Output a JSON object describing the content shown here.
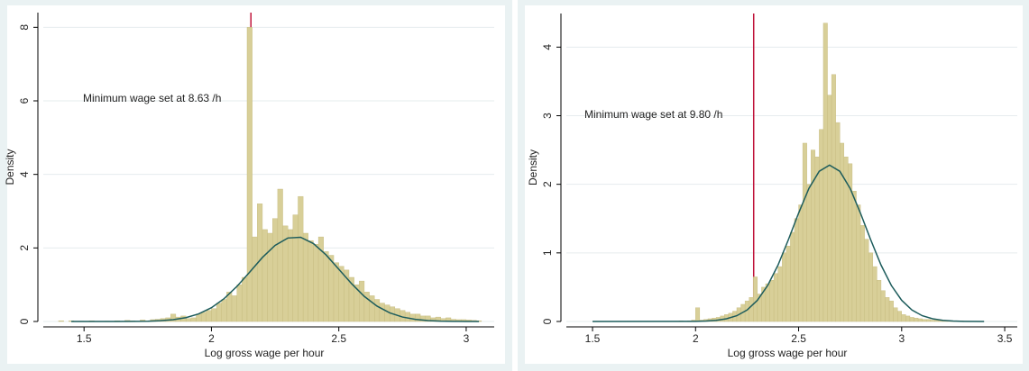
{
  "chart_data": [
    {
      "type": "histogram",
      "bins": [
        1.4,
        1.42,
        1.44,
        1.46,
        1.48,
        1.5,
        1.52,
        1.54,
        1.56,
        1.58,
        1.6,
        1.62,
        1.64,
        1.66,
        1.68,
        1.7,
        1.72,
        1.74,
        1.76,
        1.78,
        1.8,
        1.82,
        1.84,
        1.86,
        1.88,
        1.9,
        1.92,
        1.94,
        1.96,
        1.98,
        2,
        2.02,
        2.04,
        2.06,
        2.08,
        2.1,
        2.12,
        2.14,
        2.16,
        2.18,
        2.2,
        2.22,
        2.24,
        2.26,
        2.28,
        2.3,
        2.32,
        2.34,
        2.36,
        2.38,
        2.4,
        2.42,
        2.44,
        2.46,
        2.48,
        2.5,
        2.52,
        2.54,
        2.56,
        2.58,
        2.6,
        2.62,
        2.64,
        2.66,
        2.68,
        2.7,
        2.72,
        2.74,
        2.76,
        2.78,
        2.8,
        2.82,
        2.84,
        2.86,
        2.88,
        2.9,
        2.92,
        2.94,
        2.96,
        2.98,
        3,
        3.02,
        3.04,
        3.06
      ],
      "values": [
        0.02,
        0,
        0.02,
        0,
        0.01,
        0,
        0.02,
        0,
        0,
        0.01,
        0,
        0.02,
        0,
        0.03,
        0.02,
        0,
        0.04,
        0.02,
        0.05,
        0.06,
        0.08,
        0.1,
        0.2,
        0.12,
        0.15,
        0.08,
        0.1,
        0.2,
        0.25,
        0.3,
        0.35,
        0.5,
        0.6,
        0.8,
        0.7,
        1.0,
        1.2,
        8.0,
        2.3,
        3.2,
        2.5,
        2.4,
        2.8,
        3.6,
        2.6,
        2.5,
        2.9,
        3.4,
        2.4,
        2.2,
        2.1,
        2.3,
        1.9,
        1.8,
        1.6,
        1.5,
        1.4,
        1.2,
        1.0,
        1.1,
        0.8,
        0.7,
        0.6,
        0.5,
        0.45,
        0.4,
        0.35,
        0.3,
        0.25,
        0.2,
        0.2,
        0.15,
        0.15,
        0.1,
        0.12,
        0.08,
        0.1,
        0.06,
        0.05,
        0.05,
        0.04,
        0.03,
        0.02
      ],
      "color": "#d8cf98",
      "curve": {
        "x": [
          1.45,
          1.7,
          1.75,
          1.8,
          1.85,
          1.9,
          1.95,
          2,
          2.05,
          2.1,
          2.15,
          2.2,
          2.25,
          2.3,
          2.35,
          2.4,
          2.45,
          2.5,
          2.55,
          2.6,
          2.65,
          2.7,
          2.75,
          2.8,
          2.85,
          2.9,
          2.95,
          3,
          3.05
        ],
        "values": [
          0,
          0.002,
          0.007,
          0.021,
          0.049,
          0.105,
          0.206,
          0.374,
          0.623,
          0.953,
          1.34,
          1.74,
          2.07,
          2.27,
          2.29,
          2.12,
          1.81,
          1.42,
          1.03,
          0.682,
          0.417,
          0.234,
          0.121,
          0.058,
          0.025,
          0.01,
          0.004,
          0.001,
          0
        ],
        "color": "#1d5c5c"
      },
      "vline": {
        "x": 2.155,
        "color": "#c0143c"
      },
      "annotation": "Minimum wage set at 8.63 /h",
      "x_label": "Log gross wage per hour",
      "y_label": "Density",
      "xlim": [
        1.34,
        3.11
      ],
      "xticks": [
        1.5,
        2,
        2.5,
        3
      ],
      "ylim": [
        0,
        8.4
      ],
      "yticks": [
        0,
        2,
        4,
        6,
        8
      ],
      "grid": true
    },
    {
      "type": "histogram",
      "bins": [
        1.9,
        1.92,
        1.94,
        1.96,
        1.98,
        2,
        2.02,
        2.04,
        2.06,
        2.08,
        2.1,
        2.12,
        2.14,
        2.16,
        2.18,
        2.2,
        2.22,
        2.24,
        2.26,
        2.28,
        2.3,
        2.32,
        2.34,
        2.36,
        2.38,
        2.4,
        2.42,
        2.44,
        2.46,
        2.48,
        2.5,
        2.52,
        2.54,
        2.56,
        2.58,
        2.6,
        2.62,
        2.64,
        2.66,
        2.68,
        2.7,
        2.72,
        2.74,
        2.76,
        2.78,
        2.8,
        2.82,
        2.84,
        2.86,
        2.88,
        2.9,
        2.92,
        2.94,
        2.96,
        2.98,
        3,
        3.02,
        3.04,
        3.06,
        3.08,
        3.1,
        3.12,
        3.14,
        3.16,
        3.18,
        3.2,
        3.22,
        3.24,
        3.26,
        3.28,
        3.3
      ],
      "values": [
        0,
        0.01,
        0,
        0.01,
        0.02,
        0.2,
        0.02,
        0.03,
        0.04,
        0.05,
        0.06,
        0.08,
        0.1,
        0.12,
        0.15,
        0.2,
        0.25,
        0.3,
        0.35,
        0.65,
        0.4,
        0.5,
        0.55,
        0.6,
        0.7,
        0.8,
        1.0,
        1.1,
        1.3,
        1.5,
        1.7,
        2.6,
        2.0,
        2.5,
        2.4,
        2.8,
        4.35,
        3.3,
        3.6,
        2.9,
        2.6,
        2.4,
        2.3,
        1.9,
        1.7,
        1.4,
        1.2,
        1.0,
        0.8,
        0.6,
        0.45,
        0.35,
        0.3,
        0.2,
        0.15,
        0.1,
        0.08,
        0.06,
        0.05,
        0.04,
        0.03,
        0.03,
        0.02,
        0.02,
        0.01,
        0.01,
        0.01,
        0.01,
        0,
        0.01
      ],
      "color": "#d8cf98",
      "curve": {
        "x": [
          1.5,
          2,
          2.05,
          2.1,
          2.15,
          2.2,
          2.25,
          2.3,
          2.35,
          2.4,
          2.45,
          2.5,
          2.55,
          2.6,
          2.65,
          2.7,
          2.75,
          2.8,
          2.85,
          2.9,
          2.95,
          3,
          3.05,
          3.1,
          3.15,
          3.2,
          3.25,
          3.3,
          3.4
        ],
        "values": [
          0,
          0.002,
          0.006,
          0.016,
          0.039,
          0.084,
          0.167,
          0.309,
          0.525,
          0.822,
          1.19,
          1.58,
          1.94,
          2.19,
          2.28,
          2.19,
          1.94,
          1.58,
          1.19,
          0.822,
          0.525,
          0.309,
          0.167,
          0.084,
          0.039,
          0.016,
          0.006,
          0.002,
          0
        ],
        "color": "#1d5c5c"
      },
      "vline": {
        "x": 2.282,
        "color": "#c0143c"
      },
      "annotation": "Minimum wage set at 9.80 /h",
      "x_label": "Log gross wage per hour",
      "y_label": "Density",
      "xlim": [
        1.373,
        3.561
      ],
      "xticks": [
        1.5,
        2,
        2.5,
        3,
        3.5
      ],
      "ylim": [
        0,
        4.49
      ],
      "yticks": [
        0,
        1,
        2,
        3,
        4
      ],
      "grid": true
    }
  ]
}
